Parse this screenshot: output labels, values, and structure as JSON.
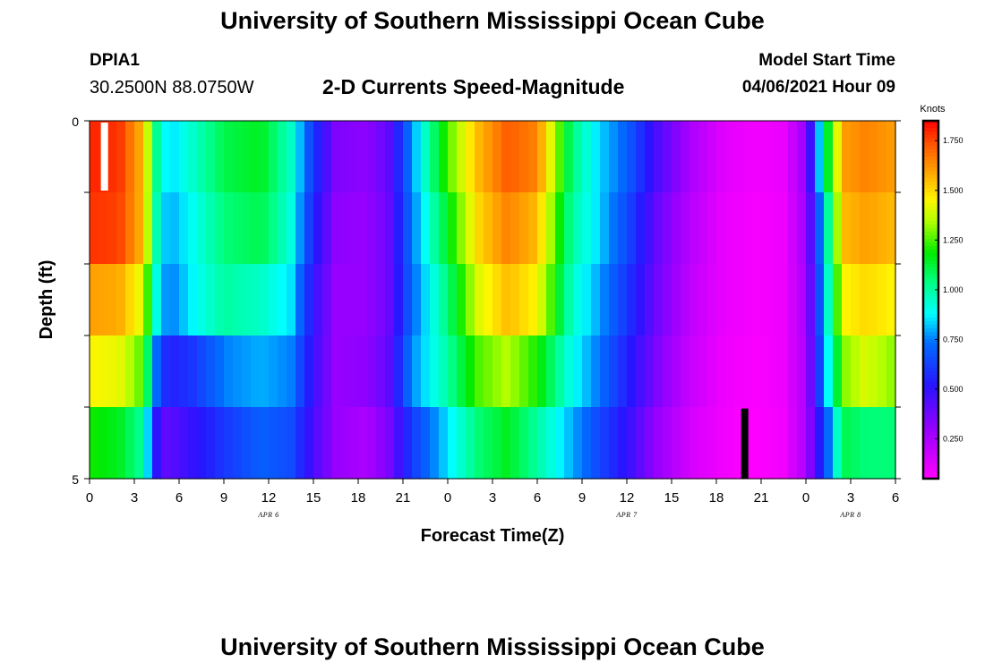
{
  "header": {
    "title": "University of Southern Mississippi Ocean Cube",
    "station": "DPIA1",
    "coordinates": "30.2500N  88.0750W",
    "model_start_label": "Model Start Time",
    "model_start_value": "04/06/2021 Hour 09"
  },
  "footer": {
    "title": "University of Southern Mississippi Ocean Cube"
  },
  "chart_data": {
    "type": "heatmap",
    "title": "2-D Currents Speed-Magnitude",
    "xlabel": "Forecast Time(Z)",
    "ylabel": "Depth (ft)",
    "y_ticks": [
      "0",
      "5"
    ],
    "ylim": [
      0,
      5
    ],
    "x_ticks": [
      "0",
      "3",
      "6",
      "9",
      "12",
      "15",
      "18",
      "21",
      "0",
      "3",
      "6",
      "9",
      "12",
      "15",
      "18",
      "21",
      "0",
      "3",
      "6"
    ],
    "date_labels": [
      {
        "text": "APR 6",
        "hour": 12
      },
      {
        "text": "APR 7",
        "hour": 36
      },
      {
        "text": "APR 8",
        "hour": 51
      }
    ],
    "xlim_hours": [
      0,
      54
    ],
    "depth_bins": 5,
    "hours_per_column": 0.6,
    "colorbar": {
      "unit_label": "Knots",
      "min": 0.05,
      "max": 1.85,
      "tick_labels": [
        "1.750",
        "1.500",
        "1.250",
        "1.000",
        "0.750",
        "0.500",
        "0.250"
      ],
      "tick_values": [
        1.75,
        1.5,
        1.25,
        1.0,
        0.75,
        0.5,
        0.25
      ]
    },
    "speed_anchors_knots": {
      "hours": [
        0,
        2,
        3.6,
        4.7,
        5.5,
        7,
        9,
        11.5,
        13.5,
        15,
        16.5,
        18.5,
        20,
        21.5,
        24,
        26,
        28,
        30,
        32.3,
        34,
        36,
        38,
        40.3,
        42.5,
        44.5,
        46.5,
        48,
        49.3,
        50.5,
        52,
        54
      ],
      "depth_bin_values": [
        [
          1.8,
          1.78,
          1.55,
          0.9,
          0.85,
          0.95,
          1.1,
          1.15,
          0.95,
          0.6,
          0.35,
          0.32,
          0.4,
          0.75,
          1.25,
          1.55,
          1.72,
          1.65,
          1.05,
          0.85,
          0.7,
          0.45,
          0.25,
          0.12,
          0.08,
          0.1,
          0.3,
          1.05,
          1.6,
          1.65,
          1.6
        ],
        [
          1.78,
          1.76,
          1.55,
          0.85,
          0.8,
          0.9,
          1.05,
          1.1,
          0.92,
          0.55,
          0.32,
          0.3,
          0.38,
          0.72,
          1.15,
          1.5,
          1.65,
          1.55,
          1.0,
          0.85,
          0.65,
          0.4,
          0.22,
          0.1,
          0.07,
          0.09,
          0.28,
          0.9,
          1.55,
          1.6,
          1.55
        ],
        [
          1.6,
          1.58,
          1.4,
          0.8,
          0.75,
          0.88,
          1.0,
          0.95,
          0.85,
          0.5,
          0.3,
          0.3,
          0.38,
          0.7,
          1.05,
          1.4,
          1.55,
          1.45,
          0.95,
          0.8,
          0.6,
          0.38,
          0.2,
          0.1,
          0.07,
          0.09,
          0.26,
          0.85,
          1.45,
          1.5,
          1.45
        ],
        [
          1.45,
          1.42,
          1.25,
          0.6,
          0.55,
          0.6,
          0.75,
          0.8,
          0.75,
          0.48,
          0.3,
          0.32,
          0.4,
          0.75,
          1.0,
          1.25,
          1.35,
          1.2,
          0.9,
          0.75,
          0.55,
          0.35,
          0.18,
          0.09,
          0.06,
          0.09,
          0.25,
          0.8,
          1.3,
          1.4,
          1.3
        ],
        [
          1.2,
          1.15,
          1.0,
          0.4,
          0.42,
          0.5,
          0.6,
          0.7,
          0.65,
          0.45,
          0.3,
          0.25,
          0.35,
          0.6,
          0.85,
          1.05,
          1.15,
          1.0,
          0.8,
          0.65,
          0.5,
          0.3,
          0.15,
          0.08,
          0.05,
          0.08,
          0.25,
          0.65,
          1.1,
          1.05,
          1.05
        ]
      ]
    },
    "markers": [
      {
        "type": "white-bar",
        "hour": 1.0,
        "depth_bin": 0,
        "color": "#ffffff"
      },
      {
        "type": "black-bar",
        "hour": 43.9,
        "depth_bin": 4,
        "color": "#000000"
      }
    ]
  }
}
